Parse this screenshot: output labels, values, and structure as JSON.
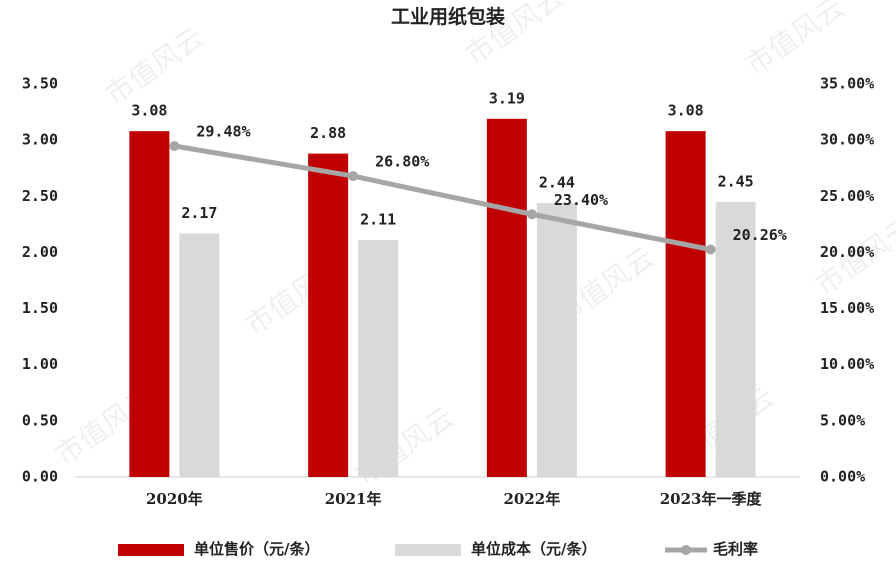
{
  "chart_data": {
    "type": "bar-line",
    "title": "工业用纸包装",
    "watermark": "市值风云",
    "categories": [
      "2020年",
      "2021年",
      "2022年",
      "2023年一季度"
    ],
    "series": [
      {
        "name": "单位售价（元/条）",
        "type": "bar",
        "color": "#c00000",
        "values": [
          3.08,
          2.88,
          3.19,
          3.08
        ]
      },
      {
        "name": "单位成本（元/条）",
        "type": "bar",
        "color": "#d9d9d9",
        "values": [
          2.17,
          2.11,
          2.44,
          2.45
        ]
      },
      {
        "name": "毛利率",
        "type": "line",
        "axis": "y2",
        "color": "#a6a6a6",
        "values": [
          29.48,
          26.8,
          23.4,
          20.26
        ],
        "value_labels": [
          "29.48%",
          "26.80%",
          "23.40%",
          "20.26%"
        ]
      }
    ],
    "ylim": [
      0,
      3.5
    ],
    "yticks": [
      {
        "value": 0,
        "label": "0.00"
      },
      {
        "value": 0.5,
        "label": "0.50"
      },
      {
        "value": 1,
        "label": "1.00"
      },
      {
        "value": 1.5,
        "label": "1.50"
      },
      {
        "value": 2,
        "label": "2.00"
      },
      {
        "value": 2.5,
        "label": "2.50"
      },
      {
        "value": 3,
        "label": "3.00"
      },
      {
        "value": 3.5,
        "label": "3.50"
      }
    ],
    "y2lim": [
      0,
      35
    ],
    "y2ticks": [
      {
        "value": 0,
        "label": "0.00%"
      },
      {
        "value": 5,
        "label": "5.00%"
      },
      {
        "value": 10,
        "label": "10.00%"
      },
      {
        "value": 15,
        "label": "15.00%"
      },
      {
        "value": 20,
        "label": "20.00%"
      },
      {
        "value": 25,
        "label": "25.00%"
      },
      {
        "value": 30,
        "label": "30.00%"
      },
      {
        "value": 35,
        "label": "35.00%"
      }
    ],
    "legend": "bottom"
  }
}
